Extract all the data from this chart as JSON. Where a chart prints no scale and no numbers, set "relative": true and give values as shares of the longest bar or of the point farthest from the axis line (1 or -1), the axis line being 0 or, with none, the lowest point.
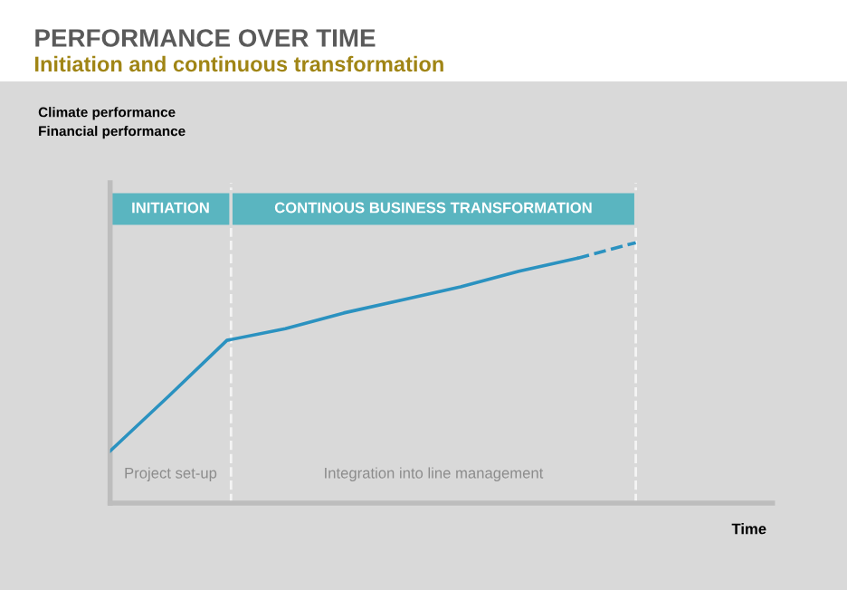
{
  "chart_data": {
    "type": "line",
    "title": "PERFORMANCE OVER TIME",
    "subtitle": "Initiation and continuous transformation",
    "xlabel": "Time",
    "relative": true,
    "categories": [
      null,
      null,
      null,
      null,
      null,
      null,
      null,
      null,
      null,
      null
    ],
    "series": [
      {
        "color": "#2b92c0",
        "values": [
          0.2,
          0.41,
          0.625,
          0.67,
          0.73,
          0.78,
          0.83,
          0.89,
          0.94,
          null
        ],
        "line_style": "solid"
      },
      {
        "color": "#2b92c0",
        "values": [
          null,
          null,
          null,
          null,
          null,
          null,
          null,
          null,
          0.94,
          1
        ],
        "line_style": "dashed"
      }
    ],
    "annotations": [
      "INITIATION",
      "CONTINOUS BUSINESS TRANSFORMATION",
      "Project set-up",
      "Integration into line management",
      "Climate performance\nFinancial performance"
    ]
  }
}
